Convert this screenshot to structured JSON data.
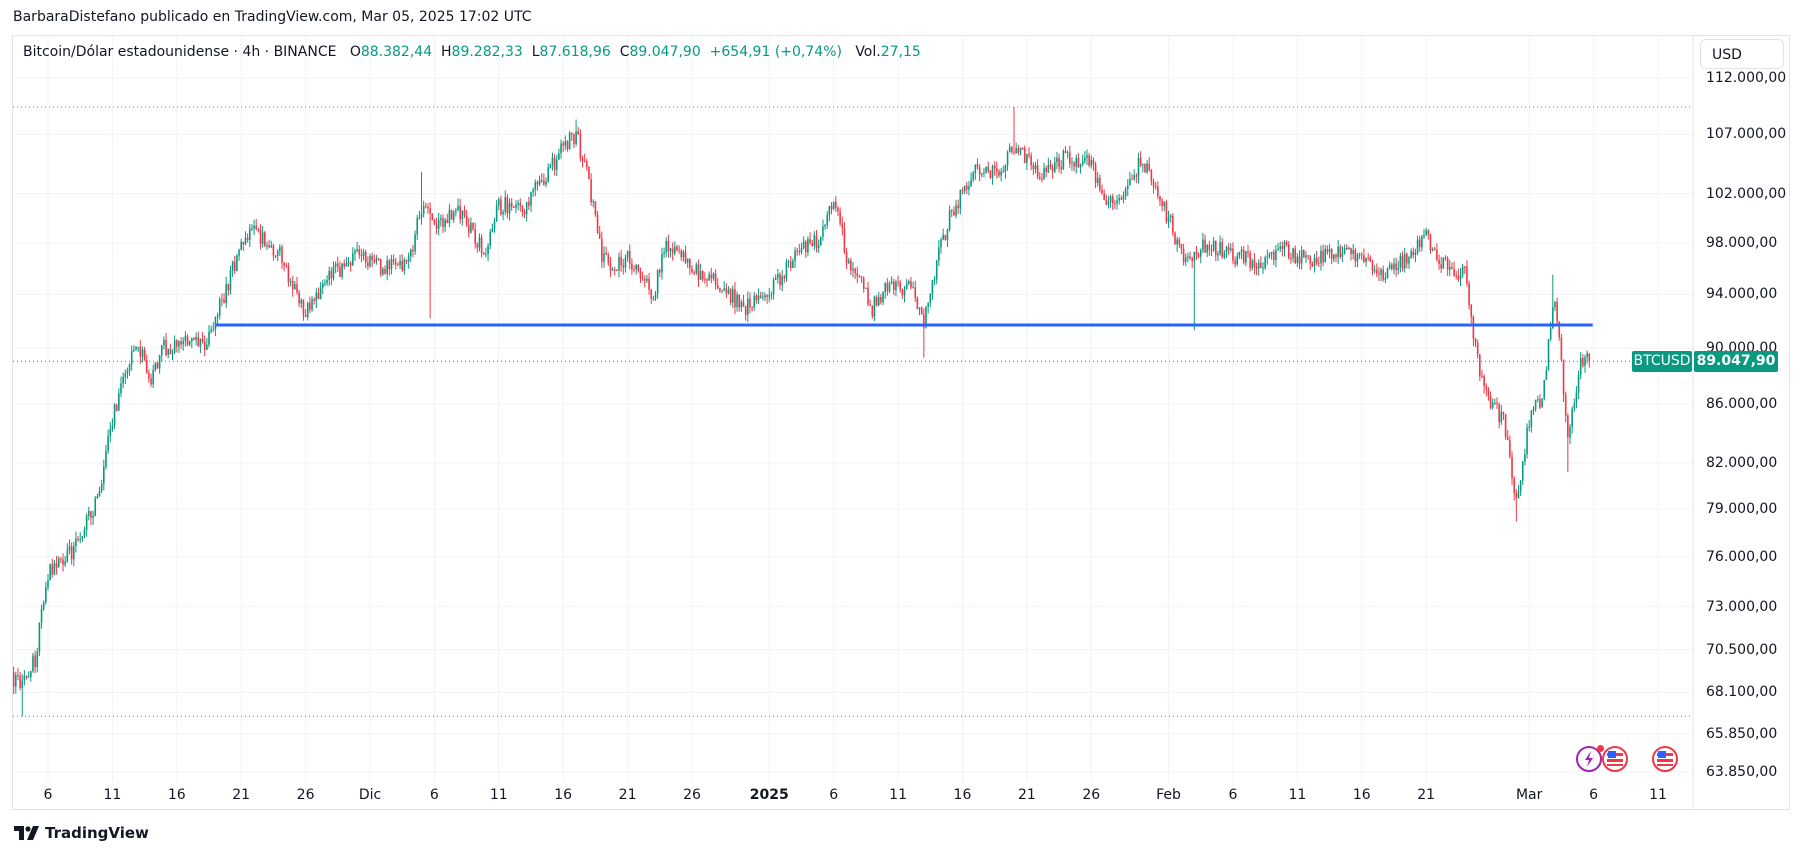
{
  "publisher_line": "BarbaraDistefano publicado en TradingView.com, Mar 05, 2025 17:02 UTC",
  "legend": {
    "title": "Bitcoin/Dólar estadounidense · 4h · BINANCE",
    "o_label": "O",
    "open": "88.382,44",
    "h_label": "H",
    "high": "89.282,33",
    "l_label": "L",
    "low": "87.618,96",
    "c_label": "C",
    "close": "89.047,90",
    "change": "+654,91 (+0,74%)",
    "vol_label": "Vol.",
    "volume": "27,15"
  },
  "currency_button": "USD",
  "symbol_tag": "BTCUSD",
  "price_tag": "89.047,90",
  "logo_text": "TradingView",
  "colors": {
    "up": "#089981",
    "down": "#f23645",
    "level_line": "#2962ff",
    "grid": "#f0f3fa"
  },
  "events": [
    {
      "icon": "lightning-icon",
      "date": "2025-03-06"
    },
    {
      "icon": "us-flag-icon",
      "date": "2025-03-06"
    },
    {
      "icon": "us-flag-icon",
      "date": "2025-03-11"
    }
  ],
  "chart_data": {
    "type": "candlestick",
    "symbol": "BTCUSD",
    "interval": "4h",
    "scale": "log",
    "ylim": [
      63850,
      112000
    ],
    "price_ticks": [
      {
        "value": 112000,
        "label": "112.000,00"
      },
      {
        "value": 107000,
        "label": "107.000,00"
      },
      {
        "value": 102000,
        "label": "102.000,00"
      },
      {
        "value": 98000,
        "label": "98.000,00"
      },
      {
        "value": 94000,
        "label": "94.000,00"
      },
      {
        "value": 90000,
        "label": "90.000,00"
      },
      {
        "value": 86000,
        "label": "86.000,00"
      },
      {
        "value": 82000,
        "label": "82.000,00"
      },
      {
        "value": 79000,
        "label": "79.000,00"
      },
      {
        "value": 76000,
        "label": "76.000,00"
      },
      {
        "value": 73000,
        "label": "73.000,00"
      },
      {
        "value": 70500,
        "label": "70.500,00"
      },
      {
        "value": 68100,
        "label": "68.100,00"
      },
      {
        "value": 65850,
        "label": "65.850,00"
      },
      {
        "value": 63850,
        "label": "63.850,00"
      }
    ],
    "time_ticks": [
      {
        "date": "2024-11-06",
        "label": "6"
      },
      {
        "date": "2024-11-11",
        "label": "11"
      },
      {
        "date": "2024-11-16",
        "label": "16"
      },
      {
        "date": "2024-11-21",
        "label": "21"
      },
      {
        "date": "2024-11-26",
        "label": "26"
      },
      {
        "date": "2024-12-01",
        "label": "Dic"
      },
      {
        "date": "2024-12-06",
        "label": "6"
      },
      {
        "date": "2024-12-11",
        "label": "11"
      },
      {
        "date": "2024-12-16",
        "label": "16"
      },
      {
        "date": "2024-12-21",
        "label": "21"
      },
      {
        "date": "2024-12-26",
        "label": "26"
      },
      {
        "date": "2025-01-01",
        "label": "2025",
        "bold": true
      },
      {
        "date": "2025-01-06",
        "label": "6"
      },
      {
        "date": "2025-01-11",
        "label": "11"
      },
      {
        "date": "2025-01-16",
        "label": "16"
      },
      {
        "date": "2025-01-21",
        "label": "21"
      },
      {
        "date": "2025-01-26",
        "label": "26"
      },
      {
        "date": "2025-02-01",
        "label": "Feb"
      },
      {
        "date": "2025-02-06",
        "label": "6"
      },
      {
        "date": "2025-02-11",
        "label": "11"
      },
      {
        "date": "2025-02-16",
        "label": "16"
      },
      {
        "date": "2025-02-21",
        "label": "21"
      },
      {
        "date": "2025-03-01",
        "label": "Mar"
      },
      {
        "date": "2025-03-06",
        "label": "6"
      },
      {
        "date": "2025-03-11",
        "label": "11"
      }
    ],
    "close_path": [
      [
        "2024-11-03",
        69000
      ],
      [
        "2024-11-04",
        68500
      ],
      [
        "2024-11-05",
        70000
      ],
      [
        "2024-11-06",
        75000
      ],
      [
        "2024-11-08",
        76500
      ],
      [
        "2024-11-10",
        80000
      ],
      [
        "2024-11-11",
        85000
      ],
      [
        "2024-11-12",
        88500
      ],
      [
        "2024-11-13",
        90000
      ],
      [
        "2024-11-14",
        88000
      ],
      [
        "2024-11-15",
        90000
      ],
      [
        "2024-11-17",
        90500
      ],
      [
        "2024-11-18",
        90000
      ],
      [
        "2024-11-19",
        92000
      ],
      [
        "2024-11-21",
        98000
      ],
      [
        "2024-11-22",
        99000
      ],
      [
        "2024-11-24",
        97000
      ],
      [
        "2024-11-26",
        92500
      ],
      [
        "2024-11-28",
        95500
      ],
      [
        "2024-11-30",
        97000
      ],
      [
        "2024-12-02",
        96000
      ],
      [
        "2024-12-04",
        96500
      ],
      [
        "2024-12-05",
        101000
      ],
      [
        "2024-12-06",
        99500
      ],
      [
        "2024-12-08",
        100500
      ],
      [
        "2024-12-10",
        97000
      ],
      [
        "2024-12-11",
        101000
      ],
      [
        "2024-12-13",
        101000
      ],
      [
        "2024-12-15",
        104000
      ],
      [
        "2024-12-16",
        106000
      ],
      [
        "2024-12-17",
        107000
      ],
      [
        "2024-12-18",
        103000
      ],
      [
        "2024-12-19",
        97000
      ],
      [
        "2024-12-20",
        96000
      ],
      [
        "2024-12-21",
        97000
      ],
      [
        "2024-12-23",
        94000
      ],
      [
        "2024-12-24",
        98000
      ],
      [
        "2024-12-26",
        96000
      ],
      [
        "2024-12-28",
        95000
      ],
      [
        "2024-12-30",
        93000
      ],
      [
        "2025-01-01",
        94000
      ],
      [
        "2025-01-03",
        97000
      ],
      [
        "2025-01-05",
        98500
      ],
      [
        "2025-01-06",
        102000
      ],
      [
        "2025-01-07",
        97000
      ],
      [
        "2025-01-09",
        93000
      ],
      [
        "2025-01-10",
        94500
      ],
      [
        "2025-01-12",
        94500
      ],
      [
        "2025-01-13",
        92000
      ],
      [
        "2025-01-14",
        96500
      ],
      [
        "2025-01-15",
        100000
      ],
      [
        "2025-01-17",
        104000
      ],
      [
        "2025-01-19",
        104000
      ],
      [
        "2025-01-20",
        106000
      ],
      [
        "2025-01-21",
        105000
      ],
      [
        "2025-01-22",
        103500
      ],
      [
        "2025-01-24",
        105000
      ],
      [
        "2025-01-26",
        104500
      ],
      [
        "2025-01-27",
        101000
      ],
      [
        "2025-01-28",
        101500
      ],
      [
        "2025-01-30",
        105000
      ],
      [
        "2025-01-31",
        102000
      ],
      [
        "2025-02-01",
        100000
      ],
      [
        "2025-02-02",
        97000
      ],
      [
        "2025-02-03",
        97000
      ],
      [
        "2025-02-04",
        98000
      ],
      [
        "2025-02-06",
        97000
      ],
      [
        "2025-02-08",
        96500
      ],
      [
        "2025-02-10",
        97500
      ],
      [
        "2025-02-12",
        96500
      ],
      [
        "2025-02-14",
        97500
      ],
      [
        "2025-02-16",
        96500
      ],
      [
        "2025-02-18",
        95500
      ],
      [
        "2025-02-20",
        97500
      ],
      [
        "2025-02-21",
        98500
      ],
      [
        "2025-02-22",
        96500
      ],
      [
        "2025-02-24",
        95500
      ],
      [
        "2025-02-25",
        89000
      ],
      [
        "2025-02-26",
        86000
      ],
      [
        "2025-02-27",
        85000
      ],
      [
        "2025-02-28",
        79500
      ],
      [
        "2025-03-01",
        85000
      ],
      [
        "2025-03-02",
        86500
      ],
      [
        "2025-03-03",
        94000
      ],
      [
        "2025-03-04",
        84000
      ],
      [
        "2025-03-05",
        89047.9
      ]
    ],
    "extremes": [
      [
        "2024-11-04",
        "low",
        66800
      ],
      [
        "2024-12-05",
        "high",
        103800
      ],
      [
        "2024-12-05T16",
        "low",
        92200
      ],
      [
        "2024-12-17",
        "high",
        108300
      ],
      [
        "2025-01-13",
        "low",
        89300
      ],
      [
        "2025-01-20",
        "high",
        109400
      ],
      [
        "2025-02-03",
        "low",
        91300
      ],
      [
        "2025-02-28",
        "low",
        78200
      ],
      [
        "2025-03-02T20",
        "high",
        95500
      ],
      [
        "2025-03-04",
        "low",
        81400
      ]
    ],
    "horizontal_line": {
      "price": 91700,
      "from": "2024-11-19",
      "to": "2025-03-05"
    },
    "range_high": 109400,
    "range_low": 66800,
    "last_price": 89047.9
  }
}
